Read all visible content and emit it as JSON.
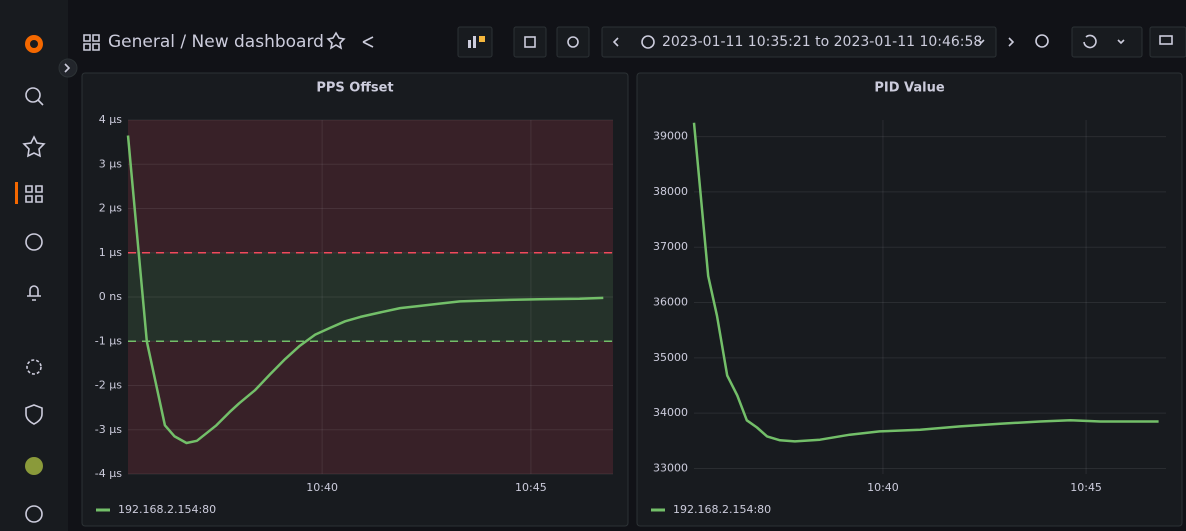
{
  "header": {
    "title": "General / New dashboard",
    "time_range": "2023-01-11 10:35:21 to 2023-01-11 10:46:58"
  },
  "chart_data": [
    {
      "type": "line",
      "title": "PPS Offset",
      "x": [
        "10:35:21",
        "10:35:48",
        "10:36:14",
        "10:36:28",
        "10:36:45",
        "10:37:00",
        "10:37:28",
        "10:37:47",
        "10:38:01",
        "10:38:24",
        "10:38:45",
        "10:39:07",
        "10:39:28",
        "10:39:50",
        "10:40:11",
        "10:40:33",
        "10:40:55",
        "10:41:23",
        "10:41:52",
        "10:42:21",
        "10:42:49",
        "10:43:18",
        "10:44:15",
        "10:45:13",
        "10:46:10",
        "10:46:44"
      ],
      "series": [
        {
          "name": "192.168.2.154:80",
          "color": "#73bf69",
          "values": [
            3.65,
            -1.0,
            -2.9,
            -3.15,
            -3.3,
            -3.25,
            -2.9,
            -2.6,
            -2.4,
            -2.1,
            -1.75,
            -1.4,
            -1.1,
            -0.85,
            -0.7,
            -0.55,
            -0.45,
            -0.35,
            -0.25,
            -0.2,
            -0.15,
            -0.1,
            -0.07,
            -0.05,
            -0.04,
            -0.02
          ]
        }
      ],
      "xlim": [
        "10:35:21",
        "10:46:58"
      ],
      "xticks": [
        {
          "value": "10:40:00",
          "label": "10:40"
        },
        {
          "value": "10:45:00",
          "label": "10:45"
        }
      ],
      "ylim": [
        -4,
        4
      ],
      "yticks": [
        {
          "value": -4,
          "label": "-4 µs"
        },
        {
          "value": -3,
          "label": "-3 µs"
        },
        {
          "value": -2,
          "label": "-2 µs"
        },
        {
          "value": -1,
          "label": "-1 µs"
        },
        {
          "value": 0,
          "label": "0 ns"
        },
        {
          "value": 1,
          "label": "1 µs"
        },
        {
          "value": 2,
          "label": "2 µs"
        },
        {
          "value": 3,
          "label": "3 µs"
        },
        {
          "value": 4,
          "label": "4 µs"
        }
      ],
      "grid": true,
      "threshold_lines": [
        {
          "value": 1,
          "color": "#f2495c"
        },
        {
          "value": -1,
          "color": "#73bf69"
        }
      ],
      "band_inside_color": "#73bf69",
      "band_outside_color": "#f2495c"
    },
    {
      "type": "line",
      "title": "PID Value",
      "x": [
        "10:35:21",
        "10:35:42",
        "10:35:55",
        "10:36:10",
        "10:36:25",
        "10:36:39",
        "10:36:54",
        "10:37:09",
        "10:37:28",
        "10:37:50",
        "10:38:27",
        "10:39:11",
        "10:39:55",
        "10:40:55",
        "10:41:54",
        "10:42:53",
        "10:43:52",
        "10:44:37",
        "10:45:21",
        "10:46:47"
      ],
      "series": [
        {
          "name": "192.168.2.154:80",
          "color": "#73bf69",
          "values": [
            39250,
            36480,
            35760,
            34680,
            34320,
            33870,
            33740,
            33580,
            33510,
            33490,
            33520,
            33610,
            33670,
            33700,
            33760,
            33810,
            33850,
            33870,
            33850,
            33850
          ]
        }
      ],
      "xlim": [
        "10:35:21",
        "10:46:58"
      ],
      "xticks": [
        {
          "value": "10:40:00",
          "label": "10:40"
        },
        {
          "value": "10:45:00",
          "label": "10:45"
        }
      ],
      "ylim": [
        32900,
        39300
      ],
      "yticks": [
        33000,
        34000,
        35000,
        36000,
        37000,
        38000,
        39000
      ],
      "grid": true
    }
  ]
}
